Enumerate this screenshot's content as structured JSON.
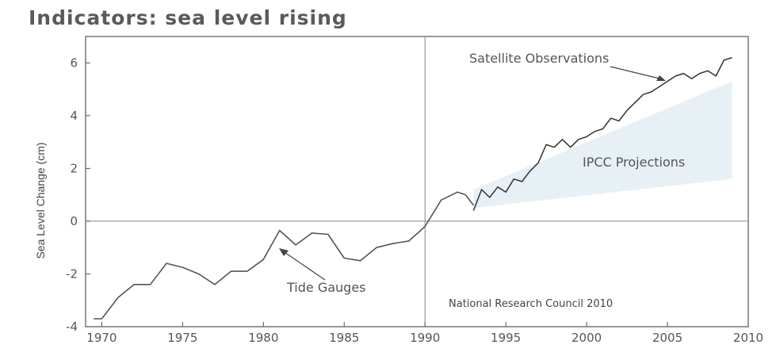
{
  "chart_data": {
    "type": "line",
    "title": "Indicators: sea level rising",
    "ylabel": "Sea Level Change (cm)",
    "xlabel": "",
    "xlim": [
      1969,
      2010
    ],
    "ylim": [
      -4,
      7
    ],
    "x_ticks": [
      "1970",
      "1975",
      "1980",
      "1985",
      "1990",
      "1995",
      "2000",
      "2005",
      "2010"
    ],
    "y_ticks": [
      "-4",
      "-2",
      "0",
      "2",
      "4",
      "6"
    ],
    "grid": false,
    "annotations": {
      "satellite": "Satellite Observations",
      "ipcc": "IPCC Projections",
      "tide": "Tide Gauges",
      "credit": "National Research Council 2010"
    },
    "series": [
      {
        "name": "Tide Gauges",
        "x": [
          1969.5,
          1970,
          1971,
          1972,
          1973,
          1974,
          1975,
          1976,
          1977,
          1978,
          1979,
          1980,
          1981,
          1982,
          1983,
          1984,
          1985,
          1986,
          1987,
          1988,
          1989,
          1990,
          1991,
          1992,
          1992.5,
          1993
        ],
        "values": [
          -3.7,
          -3.7,
          -2.9,
          -2.4,
          -2.4,
          -1.6,
          -1.75,
          -2.0,
          -2.4,
          -1.9,
          -1.9,
          -1.45,
          -0.35,
          -0.9,
          -0.45,
          -0.5,
          -1.4,
          -1.5,
          -1.0,
          -0.85,
          -0.75,
          -0.2,
          0.8,
          1.1,
          1.0,
          0.6
        ]
      },
      {
        "name": "Satellite Observations",
        "x": [
          1993,
          1993.5,
          1994,
          1994.5,
          1995,
          1995.5,
          1996,
          1996.5,
          1997,
          1997.5,
          1998,
          1998.5,
          1999,
          1999.5,
          2000,
          2000.5,
          2001,
          2001.5,
          2002,
          2002.5,
          2003,
          2003.5,
          2004,
          2004.5,
          2005,
          2005.5,
          2006,
          2006.5,
          2007,
          2007.5,
          2008,
          2008.5,
          2009
        ],
        "values": [
          0.4,
          1.2,
          0.9,
          1.3,
          1.1,
          1.6,
          1.5,
          1.9,
          2.2,
          2.9,
          2.8,
          3.1,
          2.8,
          3.1,
          3.2,
          3.4,
          3.5,
          3.9,
          3.8,
          4.2,
          4.5,
          4.8,
          4.9,
          5.1,
          5.3,
          5.5,
          5.6,
          5.4,
          5.6,
          5.7,
          5.5,
          6.1,
          6.2
        ]
      }
    ],
    "projection_band": {
      "x": [
        1993,
        2009
      ],
      "upper": [
        1.2,
        5.3
      ],
      "lower": [
        0.5,
        1.6
      ]
    }
  }
}
